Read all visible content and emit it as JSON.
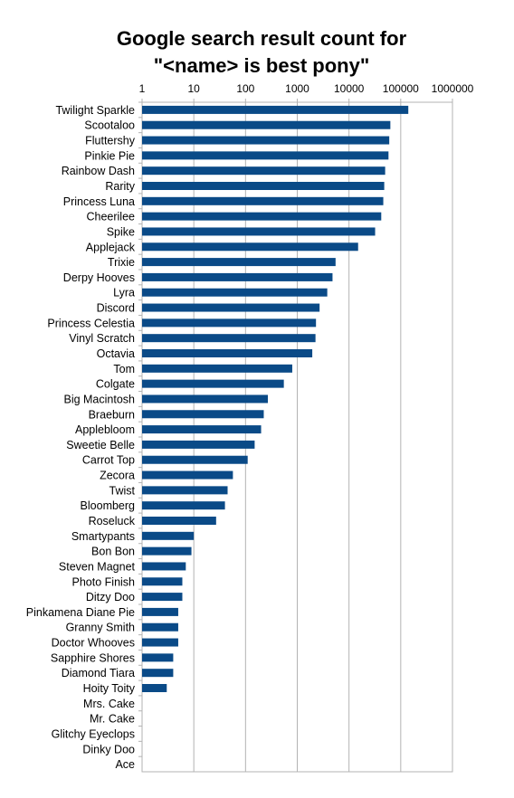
{
  "chart_data": {
    "type": "bar",
    "orientation": "horizontal",
    "title_line1": "Google search result count for",
    "title_line2": "\"<name> is best pony\"",
    "xscale": "log",
    "xlim": [
      1,
      1000000
    ],
    "x_ticks": [
      "1",
      "10",
      "100",
      "1000",
      "10000",
      "100000",
      "1000000"
    ],
    "x_tick_position": "top",
    "grid": true,
    "bar_color": "#0a4a87",
    "categories": [
      "Twilight Sparkle",
      "Scootaloo",
      "Fluttershy",
      "Pinkie Pie",
      "Rainbow Dash",
      "Rarity",
      "Princess Luna",
      "Cheerilee",
      "Spike",
      "Applejack",
      "Trixie",
      "Derpy Hooves",
      "Lyra",
      "Discord",
      "Princess Celestia",
      "Vinyl Scratch",
      "Octavia",
      "Tom",
      "Colgate",
      "Big Macintosh",
      "Braeburn",
      "Applebloom",
      "Sweetie Belle",
      "Carrot Top",
      "Zecora",
      "Twist",
      "Bloomberg",
      "Roseluck",
      "Smartypants",
      "Bon Bon",
      "Steven Magnet",
      "Photo Finish",
      "Ditzy Doo",
      "Pinkamena Diane Pie",
      "Granny Smith",
      "Doctor Whooves",
      "Sapphire Shores",
      "Diamond Tiara",
      "Hoity Toity",
      "Mrs. Cake",
      "Mr. Cake",
      "Glitchy Eyeclops",
      "Dinky Doo",
      "Ace"
    ],
    "values": [
      140000,
      63000,
      60000,
      58000,
      50000,
      48000,
      46000,
      42000,
      32000,
      15000,
      5500,
      4800,
      3800,
      2700,
      2300,
      2250,
      1950,
      800,
      550,
      270,
      225,
      200,
      150,
      110,
      57,
      45,
      40,
      27,
      10,
      9,
      7,
      6,
      6,
      5,
      5,
      5,
      4,
      4,
      3,
      1,
      1,
      1,
      1,
      1
    ]
  }
}
